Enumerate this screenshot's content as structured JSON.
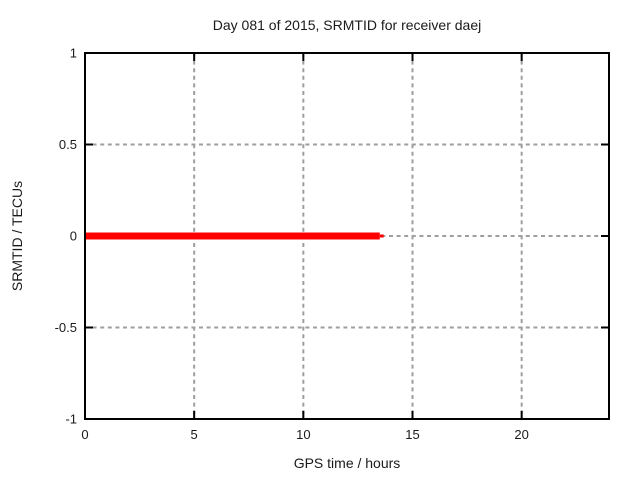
{
  "chart_data": {
    "type": "line",
    "title": "Day 081 of 2015, SRMTID for receiver daej",
    "xlabel": "GPS time / hours",
    "ylabel": "SRMTID / TECUs",
    "xlim": [
      0,
      24
    ],
    "ylim": [
      -1,
      1
    ],
    "xtick_values": [
      0,
      5,
      10,
      15,
      20
    ],
    "xtick_labels": [
      "0",
      "5",
      "10",
      "15",
      "20"
    ],
    "ytick_values": [
      -1,
      -0.5,
      0,
      0.5,
      1
    ],
    "ytick_labels": [
      "-1",
      "-0.5",
      "0",
      "0.5",
      "1"
    ],
    "grid": true,
    "legend": "none",
    "series": [
      {
        "name": "SRMTID",
        "color": "#ff0000",
        "x": [
          0,
          13.6
        ],
        "y": [
          0,
          0
        ],
        "segments": [
          {
            "x0": 0,
            "x1": 13.5,
            "y": 0,
            "thickness_px": 7
          },
          {
            "x0": 13.5,
            "x1": 13.68,
            "y": 0,
            "thickness_px": 3
          }
        ]
      }
    ],
    "style": {
      "series_color": "#ff0000",
      "grid_color": "#9e9e9e",
      "border_color": "#000000",
      "text_color": "#1a1a1a",
      "background": "#ffffff"
    }
  }
}
